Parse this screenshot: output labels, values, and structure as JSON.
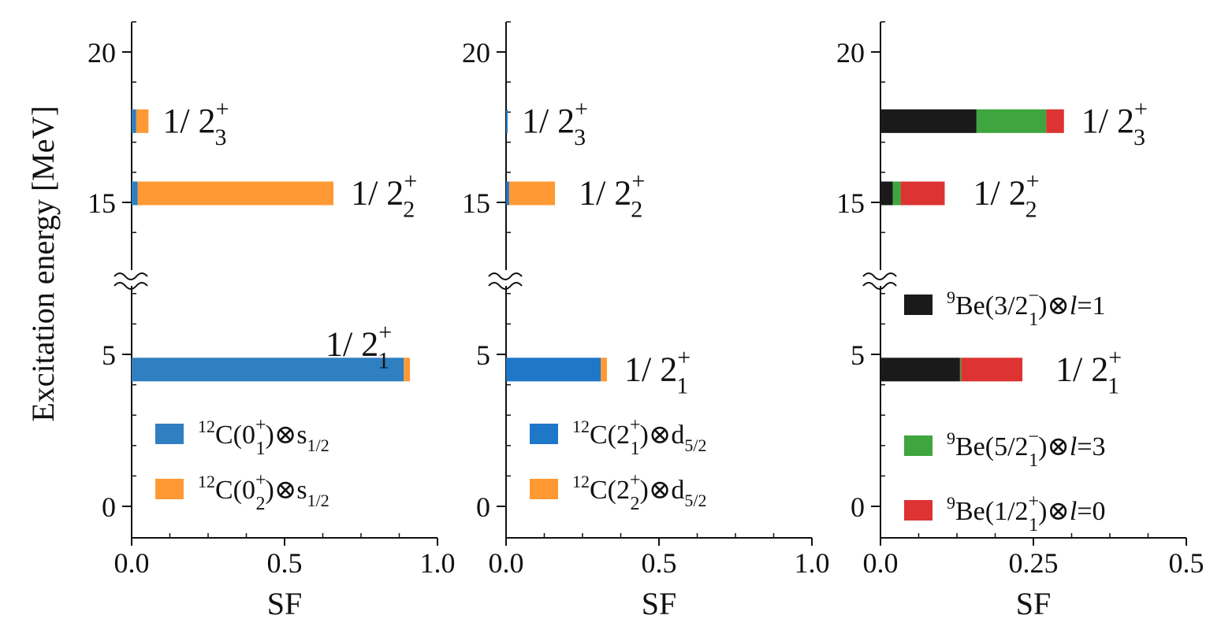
{
  "colors": {
    "blue": "#2f7fc1",
    "blue_mid": "#1f77c8",
    "orange": "#ff9933",
    "black": "#1a1a1a",
    "green": "#3fa53f",
    "red": "#dd3333"
  },
  "chart_data": [
    {
      "type": "bar",
      "orientation": "horizontal-stacked",
      "title": "",
      "xlabel": "SF",
      "ylabel": "Excitation energy [MeV]",
      "xlim": [
        0.0,
        1.0
      ],
      "x_ticks": [
        "0.0",
        "0.5",
        "1.0"
      ],
      "y_ticks": [
        "0",
        "5",
        "15",
        "20"
      ],
      "y_axis_break": true,
      "series": [
        {
          "name": "12C(0+1)⊗s1/2",
          "color_key": "blue"
        },
        {
          "name": "12C(0+2)⊗s1/2",
          "color_key": "orange"
        }
      ],
      "states": [
        {
          "label": "1/2+1",
          "label_main": "1/ 2",
          "label_sup": "+",
          "label_sub": "1",
          "energy": 4.5,
          "segments": [
            0.89,
            0.02
          ]
        },
        {
          "label": "1/2+2",
          "label_main": "1/ 2",
          "label_sup": "+",
          "label_sub": "2",
          "energy": 15.3,
          "segments": [
            0.02,
            0.64
          ]
        },
        {
          "label": "1/2+3",
          "label_main": "1/ 2",
          "label_sup": "+",
          "label_sub": "3",
          "energy": 17.7,
          "segments": [
            0.015,
            0.04
          ]
        }
      ],
      "legend": [
        {
          "pre": "12",
          "main": "C(0",
          "sup": "+",
          "sub": "1",
          "post": ")⊗s",
          "tail_sub": "1/2",
          "color_key": "blue"
        },
        {
          "pre": "12",
          "main": "C(0",
          "sup": "+",
          "sub": "2",
          "post": ")⊗s",
          "tail_sub": "1/2",
          "color_key": "orange"
        }
      ]
    },
    {
      "type": "bar",
      "orientation": "horizontal-stacked",
      "title": "",
      "xlabel": "SF",
      "ylabel": "",
      "xlim": [
        0.0,
        1.0
      ],
      "x_ticks": [
        "0.0",
        "0.5",
        "1.0"
      ],
      "y_ticks": [
        "0",
        "5",
        "15",
        "20"
      ],
      "y_axis_break": true,
      "series": [
        {
          "name": "12C(2+1)⊗d5/2",
          "color_key": "blue_mid"
        },
        {
          "name": "12C(2+2)⊗d5/2",
          "color_key": "orange"
        }
      ],
      "states": [
        {
          "label": "1/2+1",
          "label_main": "1/ 2",
          "label_sup": "+",
          "label_sub": "1",
          "energy": 4.5,
          "segments": [
            0.31,
            0.02
          ]
        },
        {
          "label": "1/2+2",
          "label_main": "1/ 2",
          "label_sup": "+",
          "label_sub": "2",
          "energy": 15.3,
          "segments": [
            0.01,
            0.15
          ]
        },
        {
          "label": "1/2+3",
          "label_main": "1/ 2",
          "label_sup": "+",
          "label_sub": "3",
          "energy": 17.7,
          "segments": [
            0.005,
            0.0
          ]
        }
      ],
      "legend": [
        {
          "pre": "12",
          "main": "C(2",
          "sup": "+",
          "sub": "1",
          "post": ")⊗d",
          "tail_sub": "5/2",
          "color_key": "blue_mid"
        },
        {
          "pre": "12",
          "main": "C(2",
          "sup": "+",
          "sub": "2",
          "post": ")⊗d",
          "tail_sub": "5/2",
          "color_key": "orange"
        }
      ]
    },
    {
      "type": "bar",
      "orientation": "horizontal-stacked",
      "title": "",
      "xlabel": "SF",
      "ylabel": "",
      "xlim": [
        0.0,
        0.5
      ],
      "x_ticks": [
        "0.0",
        "0.25",
        "0.5"
      ],
      "y_ticks": [
        "0",
        "5",
        "15",
        "20"
      ],
      "y_axis_break": true,
      "series": [
        {
          "name": "9Be(3/2-1)⊗l=1",
          "color_key": "black"
        },
        {
          "name": "9Be(5/2-1)⊗l=3",
          "color_key": "green"
        },
        {
          "name": "9Be(1/2+1)⊗l=0",
          "color_key": "red"
        }
      ],
      "states": [
        {
          "label": "1/2+1",
          "label_main": "1/ 2",
          "label_sup": "+",
          "label_sub": "1",
          "energy": 4.5,
          "segments": [
            0.13,
            0.002,
            0.1
          ]
        },
        {
          "label": "1/2+2",
          "label_main": "1/ 2",
          "label_sup": "+",
          "label_sub": "2",
          "energy": 15.3,
          "segments": [
            0.02,
            0.013,
            0.072
          ]
        },
        {
          "label": "1/2+3",
          "label_main": "1/ 2",
          "label_sup": "+",
          "label_sub": "3",
          "energy": 17.7,
          "segments": [
            0.157,
            0.114,
            0.029
          ]
        }
      ],
      "legend": [
        {
          "pre": "9",
          "main": "Be(3/2",
          "sup": "−",
          "sub": "1",
          "post": ")⊗",
          "italic": "l",
          "tail": "=1",
          "color_key": "black"
        },
        {
          "pre": "9",
          "main": "Be(5/2",
          "sup": "−",
          "sub": "1",
          "post": ")⊗",
          "italic": "l",
          "tail": "=3",
          "color_key": "green"
        },
        {
          "pre": "9",
          "main": "Be(1/2",
          "sup": "+",
          "sub": "1",
          "post": ")⊗",
          "italic": "l",
          "tail": "=0",
          "color_key": "red"
        }
      ]
    }
  ]
}
